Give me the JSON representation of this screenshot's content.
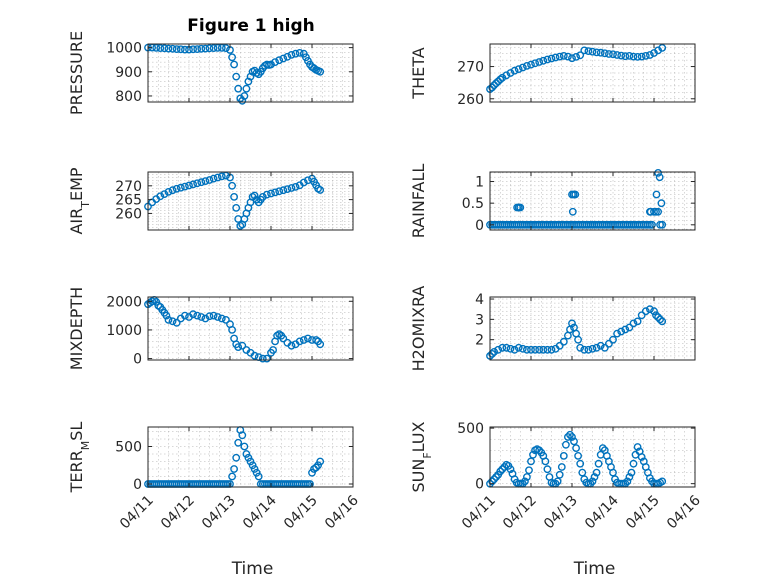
{
  "figure_title": "Figure 1 high",
  "colors": {
    "marker": "#0072bd",
    "axis": "#262626",
    "grid": "#b0b0b0"
  },
  "chart_data": [
    {
      "type": "scatter",
      "ylabel": "PRESSURE",
      "xlabel": "",
      "xlim": [
        0,
        5
      ],
      "ylim": [
        775,
        1015
      ],
      "yticks": [
        800,
        900,
        1000
      ],
      "ytick_labels": [
        "800",
        "900",
        "1000"
      ],
      "xticks": [
        0,
        1,
        2,
        3,
        4,
        5
      ],
      "xtick_labels": [],
      "grid": true,
      "x": [
        0.0,
        0.1,
        0.2,
        0.3,
        0.4,
        0.5,
        0.6,
        0.7,
        0.8,
        0.9,
        1.0,
        1.1,
        1.2,
        1.3,
        1.4,
        1.5,
        1.6,
        1.7,
        1.8,
        1.9,
        2.0,
        2.05,
        2.1,
        2.15,
        2.2,
        2.25,
        2.3,
        2.35,
        2.4,
        2.45,
        2.5,
        2.55,
        2.6,
        2.65,
        2.7,
        2.75,
        2.8,
        2.85,
        2.9,
        2.95,
        3.0,
        3.1,
        3.2,
        3.3,
        3.4,
        3.5,
        3.6,
        3.7,
        3.8,
        3.85,
        3.9,
        3.95,
        4.0,
        4.05,
        4.1,
        4.15,
        4.2
      ],
      "y": [
        1000,
        1000,
        999,
        998,
        997,
        996,
        995,
        994,
        993,
        992,
        992,
        993,
        994,
        995,
        996,
        997,
        998,
        999,
        999,
        998,
        990,
        960,
        930,
        880,
        830,
        790,
        780,
        800,
        830,
        860,
        880,
        900,
        905,
        895,
        890,
        900,
        915,
        925,
        930,
        928,
        930,
        940,
        948,
        955,
        962,
        970,
        975,
        978,
        975,
        960,
        945,
        930,
        920,
        915,
        908,
        904,
        900
      ]
    },
    {
      "type": "scatter",
      "ylabel": "THETA",
      "xlabel": "",
      "xlim": [
        0,
        5
      ],
      "ylim": [
        259,
        277
      ],
      "yticks": [
        260,
        270
      ],
      "ytick_labels": [
        "260",
        "270"
      ],
      "xticks": [
        0,
        1,
        2,
        3,
        4,
        5
      ],
      "xtick_labels": [],
      "grid": true,
      "x": [
        0.0,
        0.05,
        0.1,
        0.15,
        0.2,
        0.25,
        0.3,
        0.4,
        0.5,
        0.6,
        0.7,
        0.8,
        0.9,
        1.0,
        1.1,
        1.2,
        1.3,
        1.4,
        1.5,
        1.6,
        1.7,
        1.8,
        1.9,
        2.0,
        2.1,
        2.2,
        2.3,
        2.4,
        2.5,
        2.6,
        2.7,
        2.8,
        2.9,
        3.0,
        3.1,
        3.2,
        3.3,
        3.4,
        3.5,
        3.6,
        3.7,
        3.8,
        3.9,
        4.0,
        4.1,
        4.2
      ],
      "y": [
        263,
        263.5,
        264.2,
        264.8,
        265.4,
        266,
        266.5,
        267.3,
        268,
        268.7,
        269.2,
        269.7,
        270.2,
        270.6,
        271,
        271.4,
        271.8,
        272.2,
        272.5,
        272.8,
        273.1,
        273.3,
        273.1,
        272.6,
        273,
        273.5,
        275,
        274.8,
        274.6,
        274.4,
        274.3,
        274.1,
        273.9,
        273.8,
        273.6,
        273.4,
        273.2,
        273.3,
        273.1,
        273,
        273.1,
        273.3,
        273.6,
        274.2,
        275,
        275.8
      ]
    },
    {
      "type": "scatter",
      "ylabel": "AIR_TEMP",
      "xlabel": "",
      "xlim": [
        0,
        5
      ],
      "ylim": [
        254,
        275
      ],
      "yticks": [
        260,
        265,
        270
      ],
      "ytick_labels": [
        "260",
        "265",
        "270"
      ],
      "xticks": [
        0,
        1,
        2,
        3,
        4,
        5
      ],
      "xtick_labels": [],
      "grid": true,
      "x": [
        0.0,
        0.1,
        0.2,
        0.3,
        0.4,
        0.5,
        0.6,
        0.7,
        0.8,
        0.9,
        1.0,
        1.1,
        1.2,
        1.3,
        1.4,
        1.5,
        1.6,
        1.7,
        1.8,
        1.9,
        2.0,
        2.05,
        2.1,
        2.15,
        2.2,
        2.25,
        2.3,
        2.35,
        2.4,
        2.45,
        2.5,
        2.55,
        2.6,
        2.65,
        2.7,
        2.75,
        2.8,
        2.9,
        3.0,
        3.1,
        3.2,
        3.3,
        3.4,
        3.5,
        3.6,
        3.7,
        3.8,
        3.9,
        4.0,
        4.05,
        4.1,
        4.15,
        4.2
      ],
      "y": [
        262.5,
        264,
        265.2,
        266.2,
        267,
        267.8,
        268.4,
        268.9,
        269.3,
        269.7,
        270.1,
        270.5,
        270.9,
        271.3,
        271.7,
        272.1,
        272.6,
        273,
        273.4,
        273.7,
        273,
        270,
        266,
        262,
        258,
        255.5,
        256,
        258,
        260,
        262,
        264,
        266,
        266.5,
        265,
        264,
        265,
        266,
        266.8,
        267.2,
        267.6,
        268,
        268.4,
        268.8,
        269.2,
        269.6,
        270.2,
        271.2,
        272,
        272.6,
        271.5,
        270.2,
        269,
        268.5
      ]
    },
    {
      "type": "scatter",
      "ylabel": "RAINFALL",
      "xlabel": "",
      "xlim": [
        0,
        5
      ],
      "ylim": [
        -0.12,
        1.22
      ],
      "yticks": [
        0,
        0.5,
        1
      ],
      "ytick_labels": [
        "0",
        "0.5",
        "1"
      ],
      "xticks": [
        0,
        1,
        2,
        3,
        4,
        5
      ],
      "xtick_labels": [],
      "grid": true,
      "x": [
        0.0,
        0.05,
        0.1,
        0.15,
        0.2,
        0.25,
        0.3,
        0.35,
        0.4,
        0.45,
        0.5,
        0.55,
        0.6,
        0.65,
        0.7,
        0.75,
        0.8,
        0.85,
        0.9,
        0.95,
        1.0,
        1.05,
        1.1,
        1.15,
        1.2,
        1.25,
        1.3,
        1.35,
        1.4,
        1.45,
        1.5,
        1.55,
        1.6,
        1.65,
        1.7,
        1.75,
        1.8,
        1.85,
        1.9,
        1.95,
        2.0,
        2.05,
        2.1,
        2.15,
        2.2,
        2.25,
        2.3,
        2.35,
        2.4,
        2.45,
        2.5,
        2.55,
        2.6,
        2.65,
        2.7,
        2.75,
        2.8,
        2.85,
        2.9,
        2.95,
        3.0,
        3.05,
        3.1,
        3.15,
        3.2,
        3.25,
        3.3,
        3.35,
        3.4,
        3.45,
        3.5,
        3.55,
        3.6,
        3.65,
        3.7,
        3.75,
        3.8,
        3.85,
        3.9,
        3.95,
        4.0,
        4.05,
        4.1,
        4.15,
        4.2,
        0.66,
        0.7,
        0.74,
        2.0,
        2.04,
        2.08,
        2.02,
        3.9,
        3.92,
        4.1,
        4.14,
        4.06,
        4.18
      ],
      "y": [
        0,
        0,
        0,
        0,
        0,
        0,
        0,
        0,
        0,
        0,
        0,
        0,
        0,
        0,
        0,
        0,
        0,
        0,
        0,
        0,
        0,
        0,
        0,
        0,
        0,
        0,
        0,
        0,
        0,
        0,
        0,
        0,
        0,
        0,
        0,
        0,
        0,
        0,
        0,
        0,
        0,
        0,
        0,
        0,
        0,
        0,
        0,
        0,
        0,
        0,
        0,
        0,
        0,
        0,
        0,
        0,
        0,
        0,
        0,
        0,
        0,
        0,
        0,
        0,
        0,
        0,
        0,
        0,
        0,
        0,
        0,
        0,
        0,
        0,
        0,
        0,
        0,
        0,
        0,
        0,
        0.3,
        0.3,
        0.3,
        0,
        0,
        0.4,
        0.4,
        0.4,
        0.7,
        0.7,
        0.7,
        0.3,
        0.3,
        0.3,
        1.2,
        1.1,
        0.7,
        0.5
      ]
    },
    {
      "type": "scatter",
      "ylabel": "MIXDEPTH",
      "xlabel": "",
      "xlim": [
        0,
        5
      ],
      "ylim": [
        -50,
        2150
      ],
      "yticks": [
        0,
        1000,
        2000
      ],
      "ytick_labels": [
        "0",
        "1000",
        "2000"
      ],
      "xticks": [
        0,
        1,
        2,
        3,
        4,
        5
      ],
      "xtick_labels": [],
      "grid": true,
      "x": [
        0.0,
        0.05,
        0.1,
        0.15,
        0.2,
        0.25,
        0.3,
        0.35,
        0.4,
        0.45,
        0.5,
        0.6,
        0.7,
        0.8,
        0.9,
        1.0,
        1.1,
        1.2,
        1.3,
        1.4,
        1.5,
        1.6,
        1.7,
        1.8,
        1.9,
        2.0,
        2.05,
        2.1,
        2.15,
        2.2,
        2.3,
        2.4,
        2.5,
        2.6,
        2.7,
        2.8,
        2.9,
        3.0,
        3.05,
        3.1,
        3.15,
        3.2,
        3.25,
        3.3,
        3.4,
        3.5,
        3.6,
        3.7,
        3.8,
        3.9,
        4.0,
        4.1,
        4.15,
        4.2
      ],
      "y": [
        1900,
        1950,
        2000,
        2050,
        1980,
        1850,
        1800,
        1700,
        1600,
        1500,
        1350,
        1300,
        1250,
        1400,
        1500,
        1450,
        1550,
        1500,
        1450,
        1400,
        1480,
        1500,
        1450,
        1400,
        1350,
        1200,
        1000,
        700,
        500,
        400,
        450,
        300,
        200,
        100,
        50,
        0,
        0,
        200,
        300,
        600,
        800,
        850,
        800,
        700,
        550,
        450,
        500,
        600,
        650,
        700,
        650,
        650,
        600,
        500
      ]
    },
    {
      "type": "scatter",
      "ylabel": "H2OMIXRA",
      "xlabel": "",
      "xlim": [
        0,
        5
      ],
      "ylim": [
        1.0,
        4.1
      ],
      "yticks": [
        2,
        3,
        4
      ],
      "ytick_labels": [
        "2",
        "3",
        "4"
      ],
      "xticks": [
        0,
        1,
        2,
        3,
        4,
        5
      ],
      "xtick_labels": [],
      "grid": true,
      "x": [
        0.0,
        0.05,
        0.1,
        0.2,
        0.3,
        0.4,
        0.5,
        0.6,
        0.7,
        0.8,
        0.9,
        1.0,
        1.1,
        1.2,
        1.3,
        1.4,
        1.5,
        1.6,
        1.7,
        1.8,
        1.9,
        1.95,
        2.0,
        2.05,
        2.1,
        2.15,
        2.2,
        2.3,
        2.4,
        2.5,
        2.6,
        2.7,
        2.8,
        2.9,
        3.0,
        3.1,
        3.2,
        3.3,
        3.4,
        3.5,
        3.6,
        3.7,
        3.8,
        3.9,
        4.0,
        4.05,
        4.1,
        4.15,
        4.2
      ],
      "y": [
        1.2,
        1.3,
        1.4,
        1.5,
        1.6,
        1.6,
        1.55,
        1.5,
        1.6,
        1.55,
        1.5,
        1.5,
        1.5,
        1.5,
        1.5,
        1.5,
        1.5,
        1.55,
        1.7,
        1.9,
        2.2,
        2.5,
        2.8,
        2.6,
        2.3,
        2.0,
        1.6,
        1.5,
        1.5,
        1.55,
        1.6,
        1.7,
        1.6,
        1.8,
        2.0,
        2.3,
        2.4,
        2.5,
        2.6,
        2.8,
        2.9,
        3.2,
        3.4,
        3.5,
        3.4,
        3.2,
        3.1,
        3.0,
        2.9
      ]
    },
    {
      "type": "scatter",
      "ylabel": "TERR_MSL",
      "xlabel": "Time",
      "xlim": [
        0,
        5
      ],
      "ylim": [
        -40,
        760
      ],
      "yticks": [
        0,
        500
      ],
      "ytick_labels": [
        "0",
        "500"
      ],
      "xticks": [
        0,
        1,
        2,
        3,
        4,
        5
      ],
      "xtick_labels": [
        "04/11",
        "04/12",
        "04/13",
        "04/14",
        "04/15",
        "04/16"
      ],
      "grid": true,
      "x": [
        0.0,
        0.05,
        0.1,
        0.15,
        0.2,
        0.25,
        0.3,
        0.35,
        0.4,
        0.45,
        0.5,
        0.55,
        0.6,
        0.65,
        0.7,
        0.75,
        0.8,
        0.85,
        0.9,
        0.95,
        1.0,
        1.05,
        1.1,
        1.15,
        1.2,
        1.25,
        1.3,
        1.35,
        1.4,
        1.45,
        1.5,
        1.55,
        1.6,
        1.65,
        1.7,
        1.75,
        1.8,
        1.85,
        1.9,
        1.95,
        2.0,
        2.05,
        2.1,
        2.15,
        2.2,
        2.25,
        2.3,
        2.35,
        2.4,
        2.45,
        2.5,
        2.55,
        2.6,
        2.65,
        2.7,
        2.75,
        2.8,
        2.85,
        2.9,
        2.95,
        3.0,
        3.05,
        3.1,
        3.15,
        3.2,
        3.25,
        3.3,
        3.35,
        3.4,
        3.45,
        3.5,
        3.55,
        3.6,
        3.65,
        3.7,
        3.75,
        3.8,
        3.85,
        3.9,
        3.95,
        4.0,
        4.05,
        4.1,
        4.15,
        4.2
      ],
      "y": [
        0,
        0,
        0,
        0,
        0,
        0,
        0,
        0,
        0,
        0,
        0,
        0,
        0,
        0,
        0,
        0,
        0,
        0,
        0,
        0,
        0,
        0,
        0,
        0,
        0,
        0,
        0,
        0,
        0,
        0,
        0,
        0,
        0,
        0,
        0,
        0,
        0,
        0,
        0,
        0,
        0,
        100,
        200,
        350,
        550,
        720,
        650,
        500,
        400,
        350,
        300,
        250,
        200,
        150,
        100,
        0,
        0,
        0,
        0,
        0,
        0,
        0,
        0,
        0,
        0,
        0,
        0,
        0,
        0,
        0,
        0,
        0,
        0,
        0,
        0,
        0,
        0,
        0,
        0,
        0,
        150,
        200,
        220,
        250,
        300
      ]
    },
    {
      "type": "scatter",
      "ylabel": "SUN_FLUX",
      "xlabel": "Time",
      "xlim": [
        0,
        5
      ],
      "ylim": [
        -30,
        510
      ],
      "yticks": [
        0,
        500
      ],
      "ytick_labels": [
        "0",
        "500"
      ],
      "xticks": [
        0,
        1,
        2,
        3,
        4,
        5
      ],
      "xtick_labels": [
        "04/11",
        "04/12",
        "04/13",
        "04/14",
        "04/15",
        "04/16"
      ],
      "grid": true,
      "x": [
        0.0,
        0.05,
        0.1,
        0.15,
        0.2,
        0.25,
        0.3,
        0.35,
        0.4,
        0.45,
        0.5,
        0.55,
        0.6,
        0.65,
        0.7,
        0.75,
        0.8,
        0.85,
        0.9,
        0.95,
        1.0,
        1.05,
        1.1,
        1.15,
        1.2,
        1.25,
        1.3,
        1.35,
        1.4,
        1.45,
        1.5,
        1.55,
        1.6,
        1.65,
        1.7,
        1.75,
        1.8,
        1.85,
        1.9,
        1.95,
        2.0,
        2.05,
        2.1,
        2.15,
        2.2,
        2.25,
        2.3,
        2.35,
        2.4,
        2.45,
        2.5,
        2.55,
        2.6,
        2.65,
        2.7,
        2.75,
        2.8,
        2.85,
        2.9,
        2.95,
        3.0,
        3.05,
        3.1,
        3.15,
        3.2,
        3.25,
        3.3,
        3.35,
        3.4,
        3.45,
        3.5,
        3.55,
        3.6,
        3.65,
        3.7,
        3.75,
        3.8,
        3.85,
        3.9,
        3.95,
        4.0,
        4.05,
        4.1,
        4.15,
        4.2
      ],
      "y": [
        0,
        20,
        40,
        60,
        80,
        110,
        130,
        150,
        170,
        160,
        130,
        90,
        40,
        10,
        0,
        0,
        0,
        20,
        60,
        120,
        200,
        260,
        300,
        310,
        300,
        280,
        250,
        200,
        130,
        60,
        10,
        0,
        0,
        20,
        80,
        150,
        250,
        350,
        420,
        440,
        420,
        380,
        320,
        250,
        180,
        100,
        40,
        10,
        0,
        0,
        20,
        60,
        100,
        180,
        260,
        320,
        300,
        250,
        200,
        150,
        100,
        40,
        10,
        0,
        0,
        0,
        0,
        20,
        60,
        100,
        180,
        260,
        330,
        290,
        240,
        200,
        150,
        100,
        50,
        20,
        0,
        0,
        0,
        10,
        20
      ]
    }
  ]
}
